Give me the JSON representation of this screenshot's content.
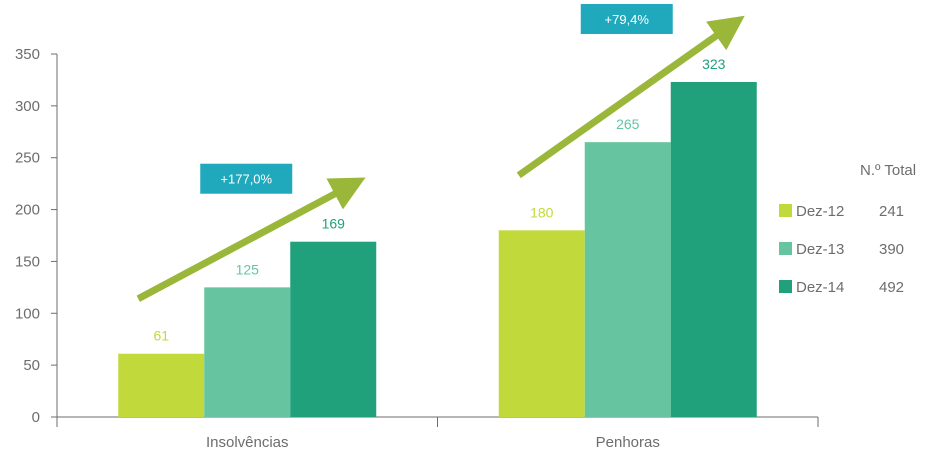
{
  "chart_data": {
    "type": "bar",
    "categories": [
      "Insolvências",
      "Penhoras"
    ],
    "series": [
      {
        "name": "Dez-12",
        "values": [
          61,
          180
        ],
        "color": "#c2d93c",
        "total": "241"
      },
      {
        "name": "Dez-13",
        "values": [
          125,
          265
        ],
        "color": "#66c5a0",
        "total": "390"
      },
      {
        "name": "Dez-14",
        "values": [
          169,
          323
        ],
        "color": "#20a07b",
        "total": "492"
      }
    ],
    "ylim": [
      0,
      350
    ],
    "yticks": [
      0,
      50,
      100,
      150,
      200,
      250,
      300,
      350
    ],
    "grid": false,
    "legend_position": "right",
    "legend_total_header": "N.º Total",
    "annotations": [
      {
        "category": "Insolvências",
        "text": "+177,0%"
      },
      {
        "category": "Penhoras",
        "text": "+79,4%"
      }
    ],
    "colors": {
      "axis": "#6d6d6d",
      "arrow": "#9ab73a",
      "badge": "#20a9bc"
    }
  }
}
